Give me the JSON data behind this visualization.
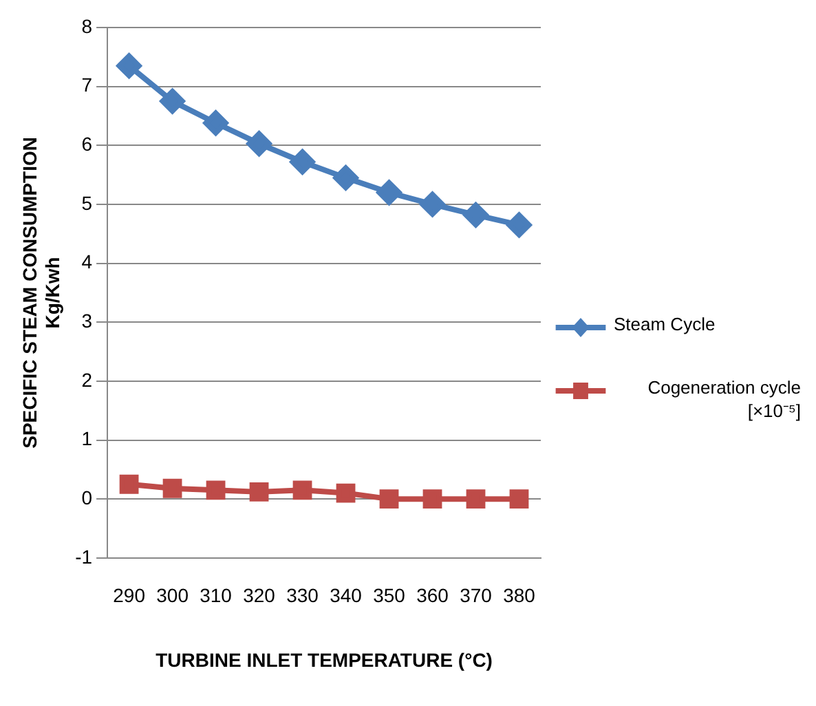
{
  "chart_data": {
    "type": "line",
    "xlabel": "TURBINE INLET TEMPERATURE (°C)",
    "ylabel": "SPECIFIC STEAM CONSUMPTION\nKg/Kwh",
    "categories": [
      "290",
      "300",
      "310",
      "320",
      "330",
      "340",
      "350",
      "360",
      "370",
      "380"
    ],
    "series": [
      {
        "name": "Steam Cycle",
        "color": "#4a7ebb",
        "marker": "diamond",
        "values": [
          7.35,
          6.75,
          6.38,
          6.03,
          5.72,
          5.45,
          5.2,
          5.0,
          4.82,
          4.65
        ]
      },
      {
        "name": "Cogeneration cycle [×10⁻⁵]",
        "color": "#be4b48",
        "marker": "square",
        "values": [
          0.25,
          0.18,
          0.15,
          0.12,
          0.15,
          0.1,
          0.0,
          0.0,
          0.0,
          0.0
        ]
      }
    ],
    "ylim": [
      -1,
      8
    ],
    "yticks": [
      -1,
      0,
      1,
      2,
      3,
      4,
      5,
      6,
      7,
      8
    ],
    "grid": "y",
    "legend": "right",
    "line_style": "solid"
  }
}
